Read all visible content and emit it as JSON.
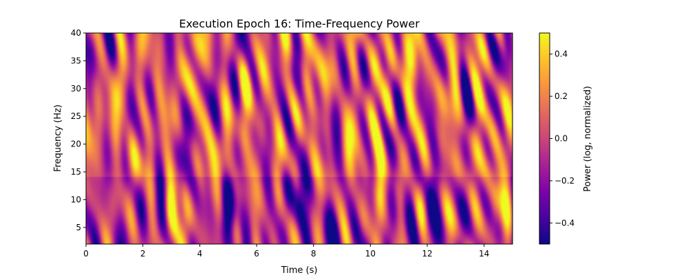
{
  "chart_data": {
    "type": "heatmap",
    "title": "Execution Epoch 16: Time-Frequency Power",
    "xlabel": "Time (s)",
    "ylabel": "Frequency (Hz)",
    "xlim": [
      0,
      15
    ],
    "ylim": [
      2,
      40
    ],
    "x_ticks": [
      0,
      2,
      4,
      6,
      8,
      10,
      12,
      14
    ],
    "y_ticks": [
      5,
      10,
      15,
      20,
      25,
      30,
      35,
      40
    ],
    "colormap": "plasma",
    "colorbar": {
      "label": "Power (log, normalized)",
      "range": [
        -0.5,
        0.5
      ],
      "ticks": [
        -0.4,
        -0.2,
        0.0,
        0.2,
        0.4
      ],
      "tick_labels": [
        "−0.4",
        "−0.2",
        "0.0",
        "0.2",
        "0.4"
      ]
    },
    "hotspots": [
      {
        "time": 2.95,
        "freq": 9,
        "power": 0.5
      },
      {
        "time": 10.3,
        "freq": 11,
        "power": 0.5
      },
      {
        "time": 10.3,
        "freq": 38,
        "power": 0.45
      },
      {
        "time": 14.4,
        "freq": 8,
        "power": 0.45
      },
      {
        "time": 3.5,
        "freq": 4,
        "power": 0.35
      },
      {
        "time": 11.5,
        "freq": 35,
        "power": 0.3
      }
    ],
    "lowspots": [
      {
        "time": 5.0,
        "freq": 8,
        "power": -0.45
      },
      {
        "time": 8.5,
        "freq": 4,
        "power": -0.45
      },
      {
        "time": 12.0,
        "freq": 5,
        "power": -0.5
      },
      {
        "time": 7.5,
        "freq": 9,
        "power": -0.4
      }
    ]
  }
}
